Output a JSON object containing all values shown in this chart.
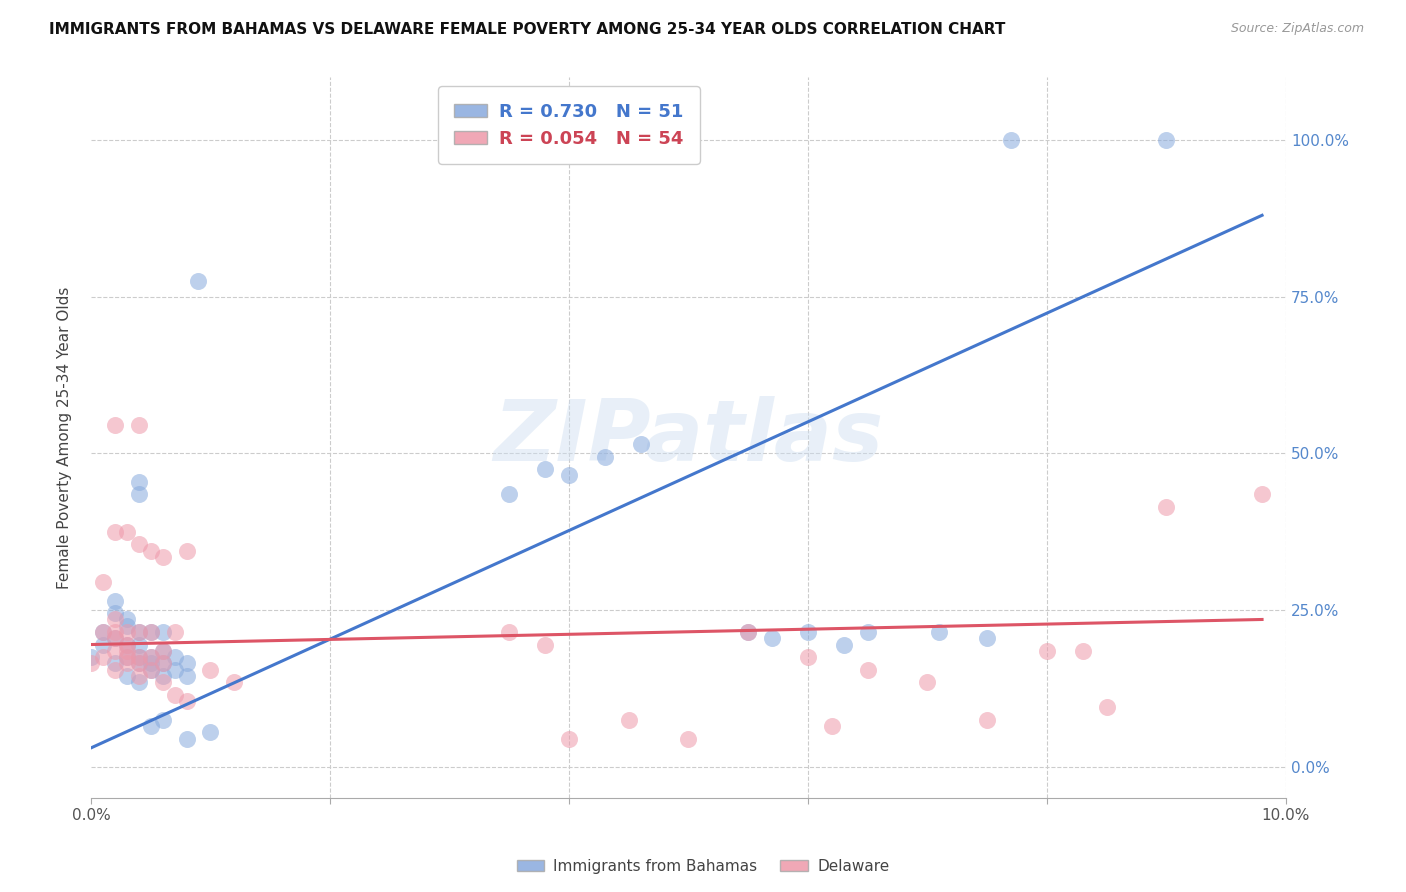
{
  "title": "IMMIGRANTS FROM BAHAMAS VS DELAWARE FEMALE POVERTY AMONG 25-34 YEAR OLDS CORRELATION CHART",
  "source": "Source: ZipAtlas.com",
  "ylabel": "Female Poverty Among 25-34 Year Olds",
  "xlim": [
    0.0,
    0.1
  ],
  "ylim": [
    -0.05,
    1.1
  ],
  "ytick_positions": [
    0.0,
    0.25,
    0.5,
    0.75,
    1.0
  ],
  "right_ytick_labels": [
    "0.0%",
    "25.0%",
    "50.0%",
    "75.0%",
    "100.0%"
  ],
  "watermark": "ZIPatlas",
  "blue_color": "#88aadd",
  "pink_color": "#ee99aa",
  "blue_line_color": "#4477cc",
  "pink_line_color": "#dd5566",
  "blue_points": [
    [
      0.0,
      0.175
    ],
    [
      0.001,
      0.195
    ],
    [
      0.001,
      0.215
    ],
    [
      0.002,
      0.165
    ],
    [
      0.002,
      0.205
    ],
    [
      0.002,
      0.245
    ],
    [
      0.002,
      0.265
    ],
    [
      0.003,
      0.145
    ],
    [
      0.003,
      0.175
    ],
    [
      0.003,
      0.195
    ],
    [
      0.003,
      0.225
    ],
    [
      0.003,
      0.235
    ],
    [
      0.004,
      0.135
    ],
    [
      0.004,
      0.165
    ],
    [
      0.004,
      0.175
    ],
    [
      0.004,
      0.195
    ],
    [
      0.004,
      0.215
    ],
    [
      0.004,
      0.435
    ],
    [
      0.004,
      0.455
    ],
    [
      0.005,
      0.155
    ],
    [
      0.005,
      0.165
    ],
    [
      0.005,
      0.175
    ],
    [
      0.005,
      0.215
    ],
    [
      0.005,
      0.065
    ],
    [
      0.006,
      0.075
    ],
    [
      0.006,
      0.145
    ],
    [
      0.006,
      0.165
    ],
    [
      0.006,
      0.185
    ],
    [
      0.006,
      0.215
    ],
    [
      0.007,
      0.155
    ],
    [
      0.007,
      0.175
    ],
    [
      0.008,
      0.145
    ],
    [
      0.008,
      0.165
    ],
    [
      0.008,
      0.045
    ],
    [
      0.009,
      0.775
    ],
    [
      0.01,
      0.055
    ],
    [
      0.035,
      0.435
    ],
    [
      0.038,
      0.475
    ],
    [
      0.04,
      0.465
    ],
    [
      0.043,
      0.495
    ],
    [
      0.046,
      0.515
    ],
    [
      0.055,
      0.215
    ],
    [
      0.057,
      0.205
    ],
    [
      0.06,
      0.215
    ],
    [
      0.063,
      0.195
    ],
    [
      0.065,
      0.215
    ],
    [
      0.071,
      0.215
    ],
    [
      0.075,
      0.205
    ],
    [
      0.077,
      1.0
    ],
    [
      0.09,
      1.0
    ]
  ],
  "pink_points": [
    [
      0.0,
      0.165
    ],
    [
      0.001,
      0.175
    ],
    [
      0.001,
      0.215
    ],
    [
      0.001,
      0.295
    ],
    [
      0.002,
      0.155
    ],
    [
      0.002,
      0.185
    ],
    [
      0.002,
      0.205
    ],
    [
      0.002,
      0.215
    ],
    [
      0.002,
      0.235
    ],
    [
      0.002,
      0.375
    ],
    [
      0.002,
      0.545
    ],
    [
      0.003,
      0.165
    ],
    [
      0.003,
      0.175
    ],
    [
      0.003,
      0.185
    ],
    [
      0.003,
      0.195
    ],
    [
      0.003,
      0.215
    ],
    [
      0.003,
      0.375
    ],
    [
      0.004,
      0.145
    ],
    [
      0.004,
      0.165
    ],
    [
      0.004,
      0.175
    ],
    [
      0.004,
      0.215
    ],
    [
      0.004,
      0.355
    ],
    [
      0.004,
      0.545
    ],
    [
      0.005,
      0.155
    ],
    [
      0.005,
      0.175
    ],
    [
      0.005,
      0.215
    ],
    [
      0.005,
      0.345
    ],
    [
      0.006,
      0.135
    ],
    [
      0.006,
      0.165
    ],
    [
      0.006,
      0.185
    ],
    [
      0.006,
      0.335
    ],
    [
      0.007,
      0.215
    ],
    [
      0.007,
      0.115
    ],
    [
      0.008,
      0.345
    ],
    [
      0.008,
      0.105
    ],
    [
      0.01,
      0.155
    ],
    [
      0.012,
      0.135
    ],
    [
      0.035,
      0.215
    ],
    [
      0.038,
      0.195
    ],
    [
      0.04,
      0.045
    ],
    [
      0.045,
      0.075
    ],
    [
      0.05,
      0.045
    ],
    [
      0.055,
      0.215
    ],
    [
      0.06,
      0.175
    ],
    [
      0.062,
      0.065
    ],
    [
      0.065,
      0.155
    ],
    [
      0.07,
      0.135
    ],
    [
      0.075,
      0.075
    ],
    [
      0.08,
      0.185
    ],
    [
      0.083,
      0.185
    ],
    [
      0.085,
      0.095
    ],
    [
      0.09,
      0.415
    ],
    [
      0.098,
      0.435
    ]
  ],
  "blue_line_x": [
    0.0,
    0.098
  ],
  "blue_line_y": [
    0.03,
    0.88
  ],
  "pink_line_x": [
    0.0,
    0.098
  ],
  "pink_line_y": [
    0.195,
    0.235
  ],
  "background_color": "#ffffff",
  "grid_color": "#cccccc"
}
